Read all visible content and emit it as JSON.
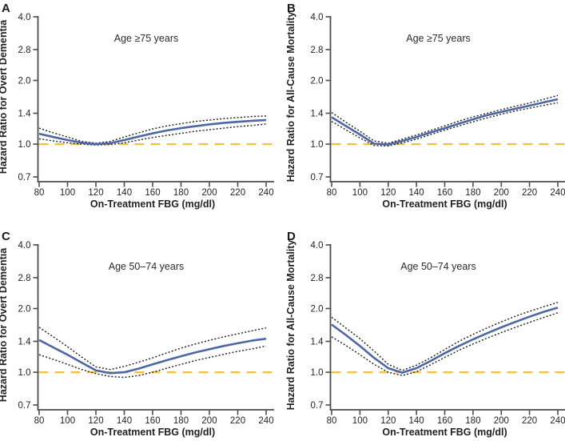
{
  "figure": {
    "description": "Four-panel spline plot of hazard ratios by on-treatment fasting blood glucose",
    "background": "#ffffff"
  },
  "chart_data": {
    "type": "line",
    "layout": "2x2-grid",
    "x_axis": {
      "label": "On-Treatment FBG (mg/dl)",
      "ticks": [
        80,
        100,
        120,
        140,
        160,
        180,
        200,
        220,
        240
      ],
      "range": [
        80,
        240
      ]
    },
    "y_axis": {
      "scale": "log",
      "ticks": [
        4.0,
        2.8,
        2.0,
        1.4,
        1.0,
        0.7
      ],
      "range": [
        0.7,
        4.0
      ]
    },
    "reference_line": {
      "y": 1.0,
      "style": "dashed"
    },
    "colors": {
      "curve": "#4d66a6",
      "ci": "#1c1c1c",
      "refline": "#eec143",
      "axis": "#4c4c4e",
      "text": "#231f20"
    },
    "x": [
      80,
      90,
      100,
      110,
      120,
      130,
      140,
      150,
      160,
      170,
      180,
      190,
      200,
      210,
      220,
      230,
      240
    ],
    "panels": [
      {
        "label": "A",
        "ylabel": "Hazard Ratio for Overt Dementia",
        "annotation": "Age ≥75 years",
        "series": {
          "hr": [
            1.12,
            1.08,
            1.045,
            1.015,
            1.0,
            1.01,
            1.045,
            1.085,
            1.125,
            1.16,
            1.19,
            1.215,
            1.24,
            1.26,
            1.275,
            1.29,
            1.3
          ],
          "ci_upper": [
            1.19,
            1.13,
            1.08,
            1.03,
            1.01,
            1.03,
            1.08,
            1.13,
            1.18,
            1.22,
            1.25,
            1.28,
            1.3,
            1.32,
            1.335,
            1.35,
            1.36
          ],
          "ci_lower": [
            1.06,
            1.035,
            1.015,
            1.0,
            0.99,
            0.995,
            1.015,
            1.045,
            1.075,
            1.1,
            1.125,
            1.15,
            1.17,
            1.19,
            1.21,
            1.225,
            1.245
          ]
        }
      },
      {
        "label": "B",
        "ylabel": "Hazard Ratio for All-Cause Mortality",
        "annotation": "Age ≥75 years",
        "series": {
          "hr": [
            1.34,
            1.22,
            1.11,
            1.005,
            0.995,
            1.035,
            1.08,
            1.135,
            1.19,
            1.25,
            1.31,
            1.37,
            1.42,
            1.47,
            1.52,
            1.575,
            1.63
          ],
          "ci_upper": [
            1.41,
            1.27,
            1.15,
            1.035,
            1.01,
            1.055,
            1.105,
            1.16,
            1.22,
            1.285,
            1.345,
            1.4,
            1.455,
            1.51,
            1.565,
            1.63,
            1.7
          ],
          "ci_lower": [
            1.28,
            1.17,
            1.07,
            0.985,
            0.98,
            1.015,
            1.055,
            1.11,
            1.165,
            1.22,
            1.275,
            1.33,
            1.385,
            1.435,
            1.48,
            1.525,
            1.57
          ]
        }
      },
      {
        "label": "C",
        "ylabel": "Hazard Ratio for Overt Dementia",
        "annotation": "Age 50–74 years",
        "series": {
          "hr": [
            1.42,
            1.31,
            1.21,
            1.11,
            1.02,
            0.99,
            1.0,
            1.04,
            1.09,
            1.14,
            1.19,
            1.24,
            1.285,
            1.33,
            1.37,
            1.41,
            1.44
          ],
          "ci_upper": [
            1.63,
            1.47,
            1.32,
            1.18,
            1.06,
            1.03,
            1.065,
            1.115,
            1.17,
            1.235,
            1.3,
            1.36,
            1.415,
            1.47,
            1.52,
            1.57,
            1.62
          ],
          "ci_lower": [
            1.21,
            1.15,
            1.09,
            1.03,
            0.985,
            0.955,
            0.945,
            0.965,
            1.0,
            1.045,
            1.09,
            1.135,
            1.175,
            1.215,
            1.255,
            1.29,
            1.33
          ]
        }
      },
      {
        "label": "D",
        "ylabel": "Hazard Ratio for All-Cause Mortality",
        "annotation": "Age 50–74 years",
        "series": {
          "hr": [
            1.68,
            1.5,
            1.33,
            1.17,
            1.045,
            0.995,
            1.045,
            1.13,
            1.23,
            1.33,
            1.43,
            1.53,
            1.63,
            1.73,
            1.83,
            1.93,
            2.02
          ],
          "ci_upper": [
            1.82,
            1.62,
            1.44,
            1.26,
            1.09,
            1.02,
            1.08,
            1.17,
            1.28,
            1.4,
            1.51,
            1.62,
            1.73,
            1.84,
            1.94,
            2.04,
            2.14
          ],
          "ci_lower": [
            1.47,
            1.34,
            1.21,
            1.09,
            1.0,
            0.965,
            1.005,
            1.085,
            1.175,
            1.27,
            1.36,
            1.45,
            1.54,
            1.63,
            1.72,
            1.815,
            1.91
          ]
        }
      }
    ]
  }
}
